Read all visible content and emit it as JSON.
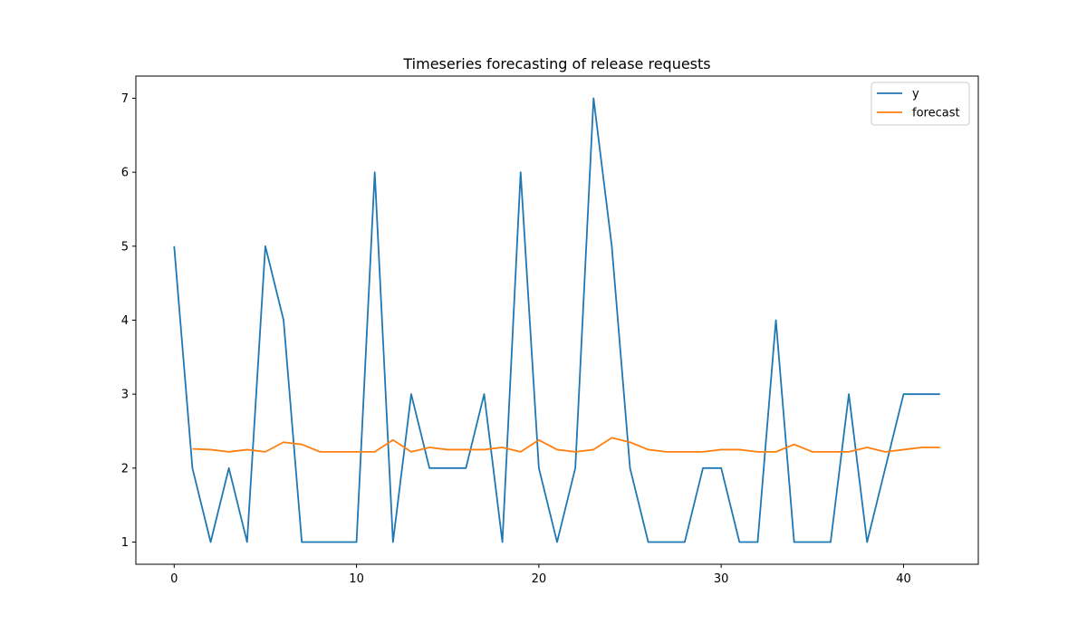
{
  "chart_data": {
    "type": "line",
    "title": "Timeseries forecasting of release requests",
    "xlabel": "",
    "ylabel": "",
    "xlim": [
      -2.1,
      44.1
    ],
    "ylim": [
      0.7,
      7.3
    ],
    "xticks": [
      0,
      10,
      20,
      30,
      40
    ],
    "yticks": [
      1,
      2,
      3,
      4,
      5,
      6,
      7
    ],
    "grid": false,
    "legend_position": "top-right",
    "series": [
      {
        "name": "y",
        "color": "#1f77b4",
        "x": [
          0,
          1,
          2,
          3,
          4,
          5,
          6,
          7,
          8,
          9,
          10,
          11,
          12,
          13,
          14,
          15,
          16,
          17,
          18,
          19,
          20,
          21,
          22,
          23,
          24,
          25,
          26,
          27,
          28,
          29,
          30,
          31,
          32,
          33,
          34,
          35,
          36,
          37,
          38,
          39,
          40,
          41,
          42
        ],
        "values": [
          5,
          2,
          1,
          2,
          1,
          5,
          4,
          1,
          1,
          1,
          1,
          6,
          1,
          3,
          2,
          2,
          2,
          3,
          1,
          6,
          2,
          1,
          2,
          7,
          5,
          2,
          1,
          1,
          1,
          2,
          2,
          1,
          1,
          4,
          1,
          1,
          1,
          3,
          1,
          2,
          3,
          3,
          3
        ]
      },
      {
        "name": "forecast",
        "color": "#ff7f0e",
        "x": [
          1,
          2,
          3,
          4,
          5,
          6,
          7,
          8,
          9,
          10,
          11,
          12,
          13,
          14,
          15,
          16,
          17,
          18,
          19,
          20,
          21,
          22,
          23,
          24,
          25,
          26,
          27,
          28,
          29,
          30,
          31,
          32,
          33,
          34,
          35,
          36,
          37,
          38,
          39,
          40,
          41,
          42
        ],
        "values": [
          2.26,
          2.25,
          2.22,
          2.25,
          2.22,
          2.35,
          2.32,
          2.22,
          2.22,
          2.22,
          2.22,
          2.38,
          2.22,
          2.28,
          2.25,
          2.25,
          2.25,
          2.28,
          2.22,
          2.38,
          2.25,
          2.22,
          2.25,
          2.41,
          2.35,
          2.25,
          2.22,
          2.22,
          2.22,
          2.25,
          2.25,
          2.22,
          2.22,
          2.32,
          2.22,
          2.22,
          2.22,
          2.28,
          2.22,
          2.25,
          2.28,
          2.28
        ]
      }
    ]
  }
}
